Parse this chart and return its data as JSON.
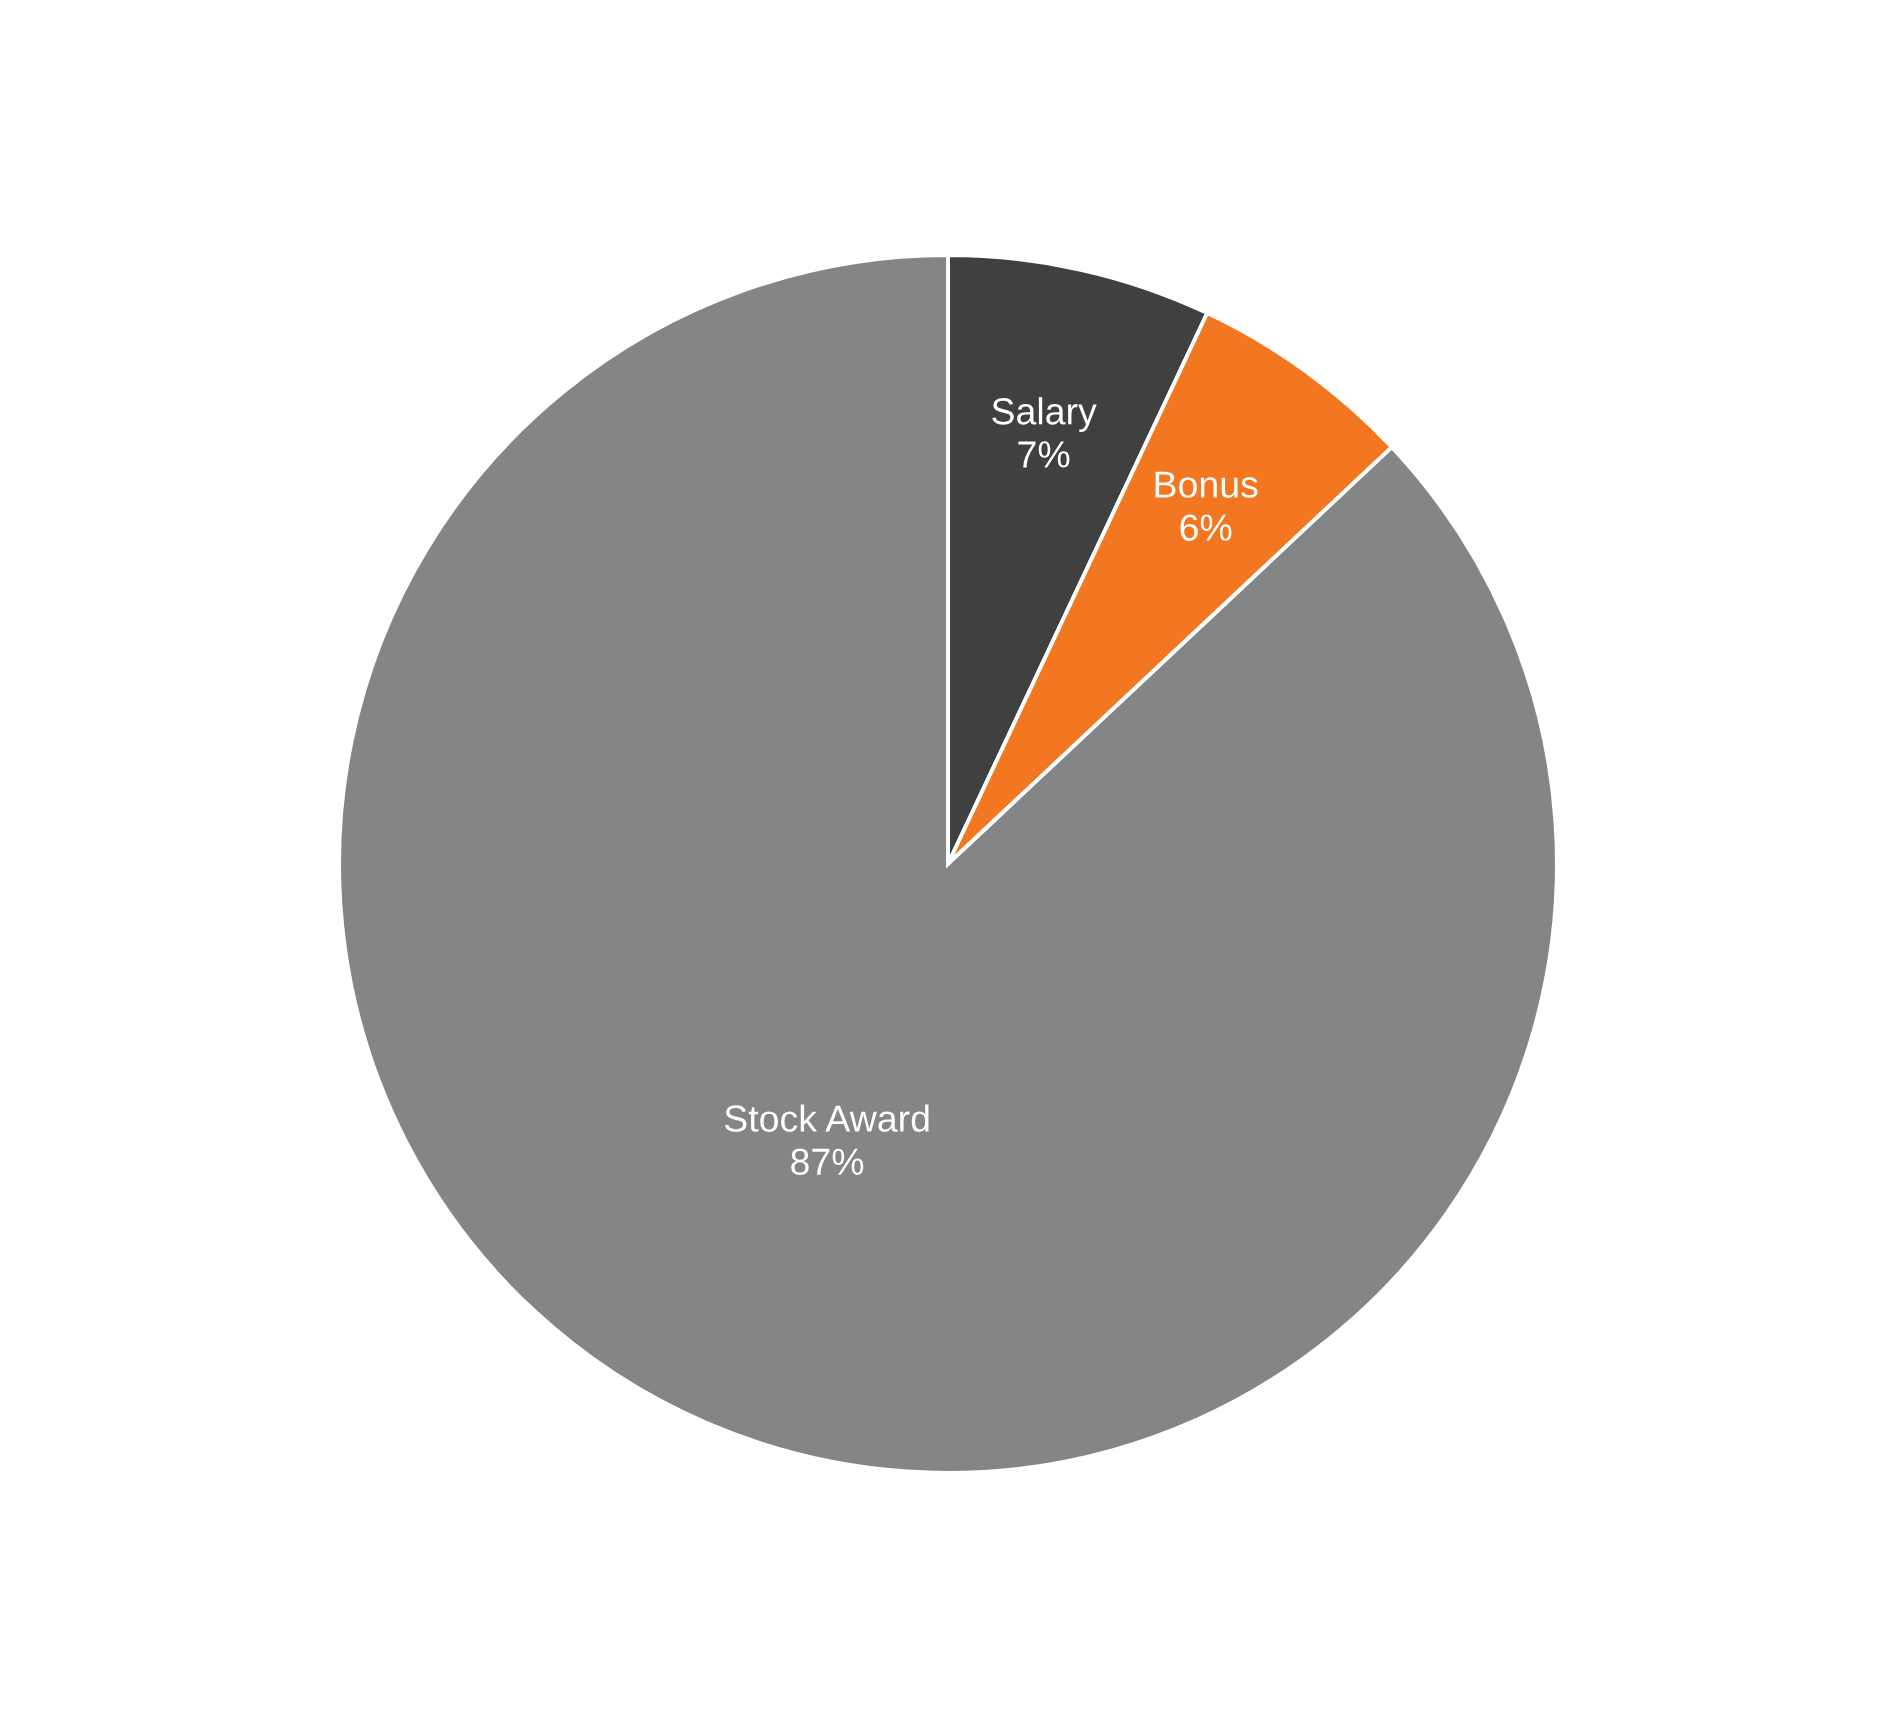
{
  "chart_data": {
    "type": "pie",
    "categories": [
      "Salary",
      "Bonus",
      "Stock Award"
    ],
    "values": [
      7,
      6,
      87
    ],
    "colors": [
      "#404040",
      "#f37721",
      "#848587"
    ],
    "value_labels": [
      "7%",
      "6%",
      "87%"
    ]
  }
}
